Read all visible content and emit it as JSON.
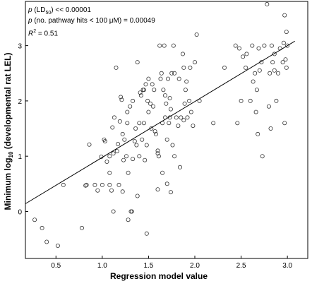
{
  "chart_data": {
    "type": "scatter",
    "title": "",
    "xlabel": "Regression model value",
    "ylabel_prefix": "Minimum log",
    "ylabel_sub": "10",
    "ylabel_suffix": " (developmental rat LEL)",
    "xlim": [
      0.17,
      3.22
    ],
    "ylim": [
      -0.85,
      3.8
    ],
    "x_ticks": [
      "0.5",
      "1.0",
      "1.5",
      "2.0",
      "2.5",
      "3.0"
    ],
    "y_ticks": [
      "0",
      "1",
      "2",
      "3"
    ],
    "grid": false,
    "annotations": {
      "line1_p": "p",
      "line1_open": " (LD",
      "line1_sub": "50",
      "line1_rest": ") << 0.00001",
      "line2_p": "p",
      "line2_rest": " (no. pathway hits < 100 μM) = 0.00049",
      "line3_r": "R",
      "line3_sup": "2",
      "line3_rest": " = 0.51"
    },
    "fit_line": {
      "x": [
        0.17,
        3.08
      ],
      "y": [
        0.14,
        3.08
      ]
    },
    "series": [
      {
        "points": [
          [
            0.27,
            -0.15
          ],
          [
            0.35,
            -0.3
          ],
          [
            0.4,
            -0.55
          ],
          [
            0.52,
            -0.62
          ],
          [
            0.58,
            0.48
          ],
          [
            0.78,
            -0.3
          ],
          [
            0.82,
            0.47
          ],
          [
            0.83,
            0.48
          ],
          [
            0.86,
            1.21
          ],
          [
            0.92,
            0.48
          ],
          [
            0.95,
            0.38
          ],
          [
            0.99,
            0.99
          ],
          [
            1.0,
            0.48
          ],
          [
            1.02,
            1.3
          ],
          [
            1.03,
            1.27
          ],
          [
            1.05,
            0.9
          ],
          [
            1.08,
            1.0
          ],
          [
            1.08,
            0.7
          ],
          [
            1.08,
            0.48
          ],
          [
            1.1,
            0.38
          ],
          [
            1.11,
            1.52
          ],
          [
            1.12,
            0.0
          ],
          [
            1.12,
            1.05
          ],
          [
            1.13,
            1.7
          ],
          [
            1.15,
            2.6
          ],
          [
            1.16,
            1.09
          ],
          [
            1.17,
            1.22
          ],
          [
            1.18,
            0.48
          ],
          [
            1.2,
            2.07
          ],
          [
            1.21,
            2.02
          ],
          [
            1.22,
            1.4
          ],
          [
            1.22,
            0.36
          ],
          [
            1.23,
            0.93
          ],
          [
            1.24,
            1.3
          ],
          [
            1.26,
            1.0
          ],
          [
            1.27,
            1.8
          ],
          [
            1.27,
            1.6
          ],
          [
            1.28,
            0.7
          ],
          [
            1.28,
            -0.15
          ],
          [
            1.3,
            1.9
          ],
          [
            1.31,
            0.0
          ],
          [
            1.32,
            0.0
          ],
          [
            1.33,
            0.95
          ],
          [
            1.33,
            2.0
          ],
          [
            1.35,
            1.27
          ],
          [
            1.37,
            1.2
          ],
          [
            1.38,
            2.7
          ],
          [
            1.38,
            0.28
          ],
          [
            1.4,
            1.0
          ],
          [
            1.4,
            1.6
          ],
          [
            1.41,
            2.15
          ],
          [
            1.42,
            2.1
          ],
          [
            1.43,
            1.3
          ],
          [
            1.44,
            2.2
          ],
          [
            1.45,
            2.2
          ],
          [
            1.45,
            1.6
          ],
          [
            1.46,
            0.93
          ],
          [
            1.47,
            2.3
          ],
          [
            1.48,
            -0.4
          ],
          [
            1.48,
            1.2
          ],
          [
            1.49,
            2.0
          ],
          [
            1.5,
            2.4
          ],
          [
            1.5,
            1.8
          ],
          [
            1.52,
            1.95
          ],
          [
            1.53,
            1.5
          ],
          [
            1.54,
            2.3
          ],
          [
            1.55,
            1.9
          ],
          [
            1.56,
            2.2
          ],
          [
            1.58,
            1.4
          ],
          [
            1.6,
            0.4
          ],
          [
            1.6,
            1.1
          ],
          [
            1.6,
            1.05
          ],
          [
            1.61,
            1.0
          ],
          [
            1.62,
            3.0
          ],
          [
            1.63,
            2.4
          ],
          [
            1.64,
            2.5
          ],
          [
            1.65,
            0.7
          ],
          [
            1.66,
            2.2
          ],
          [
            1.67,
            3.0
          ],
          [
            1.68,
            2.1
          ],
          [
            1.68,
            1.7
          ],
          [
            1.69,
            1.95
          ],
          [
            1.7,
            0.5
          ],
          [
            1.7,
            1.3
          ],
          [
            1.71,
            2.4
          ],
          [
            1.72,
            1.6
          ],
          [
            1.73,
            2.05
          ],
          [
            1.73,
            1.7
          ],
          [
            1.74,
            0.35
          ],
          [
            1.75,
            2.5
          ],
          [
            1.76,
            1.2
          ],
          [
            1.77,
            3.0
          ],
          [
            1.78,
            2.5
          ],
          [
            1.78,
            1.0
          ],
          [
            1.8,
            1.7
          ],
          [
            1.82,
            1.55
          ],
          [
            1.83,
            2.4
          ],
          [
            1.84,
            0.8
          ],
          [
            1.85,
            1.7
          ],
          [
            1.87,
            2.85
          ],
          [
            1.88,
            2.6
          ],
          [
            1.89,
            1.95
          ],
          [
            1.9,
            2.2
          ],
          [
            1.91,
            2.35
          ],
          [
            1.92,
            1.7
          ],
          [
            1.94,
            2.0
          ],
          [
            1.95,
            2.6
          ],
          [
            1.96,
            1.8
          ],
          [
            1.98,
            1.55
          ],
          [
            2.0,
            2.7
          ],
          [
            2.02,
            3.2
          ],
          [
            2.05,
            2.0
          ],
          [
            2.2,
            1.6
          ],
          [
            2.32,
            2.6
          ],
          [
            2.44,
            3.0
          ],
          [
            2.46,
            1.6
          ],
          [
            2.48,
            2.95
          ],
          [
            2.5,
            2.0
          ],
          [
            2.52,
            2.8
          ],
          [
            2.55,
            2.6
          ],
          [
            2.56,
            2.85
          ],
          [
            2.6,
            2.0
          ],
          [
            2.62,
            3.0
          ],
          [
            2.63,
            2.35
          ],
          [
            2.65,
            2.5
          ],
          [
            2.66,
            1.8
          ],
          [
            2.67,
            2.2
          ],
          [
            2.68,
            1.4
          ],
          [
            2.69,
            2.95
          ],
          [
            2.72,
            2.7
          ],
          [
            2.73,
            1.0
          ],
          [
            2.75,
            3.0
          ],
          [
            2.78,
            3.75
          ],
          [
            2.8,
            1.9
          ],
          [
            2.81,
            2.5
          ],
          [
            2.82,
            1.5
          ],
          [
            2.83,
            3.0
          ],
          [
            2.84,
            2.7
          ],
          [
            2.86,
            2.55
          ],
          [
            2.88,
            2.0
          ],
          [
            2.9,
            2.5
          ],
          [
            2.92,
            2.95
          ],
          [
            2.95,
            2.7
          ],
          [
            2.96,
            3.05
          ],
          [
            2.97,
            1.6
          ],
          [
            2.97,
            3.55
          ],
          [
            2.98,
            2.75
          ],
          [
            2.99,
            3.25
          ],
          [
            3.0,
            3.0
          ],
          [
            2.99,
            2.6
          ],
          [
            2.86,
            2.85
          ],
          [
            2.7,
            2.55
          ],
          [
            1.74,
            1.85
          ],
          [
            1.57,
            1.45
          ],
          [
            1.36,
            1.5
          ],
          [
            1.19,
            1.63
          ],
          [
            1.65,
            1.6
          ],
          [
            1.88,
            1.65
          ]
        ]
      }
    ]
  }
}
